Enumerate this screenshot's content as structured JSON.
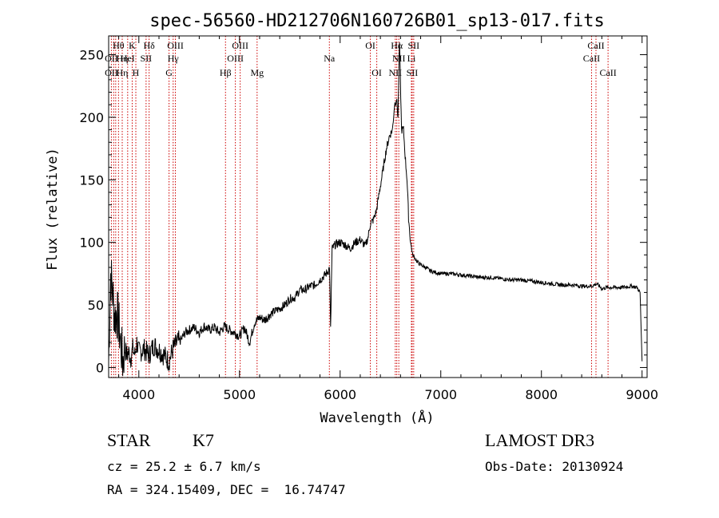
{
  "chart_data": {
    "type": "line",
    "title": "spec-56560-HD212706N160726B01_sp13-017.fits",
    "xlabel": "Wavelength (Å)",
    "ylabel": "Flux (relative)",
    "xlim": [
      3700,
      9050
    ],
    "ylim": [
      -8,
      265
    ],
    "xticks": [
      4000,
      5000,
      6000,
      7000,
      8000,
      9000
    ],
    "yticks": [
      0,
      50,
      100,
      150,
      200,
      250
    ],
    "grid": false,
    "line_color": "#000000",
    "marker_color": "#cc0000",
    "series": [
      {
        "x": [
          3700,
          3720,
          3740,
          3760,
          3780,
          3800,
          3820,
          3840,
          3860,
          3880,
          3900,
          3920,
          3940,
          3960,
          3980,
          4000,
          4050,
          4100,
          4150,
          4200,
          4250,
          4300,
          4340,
          4380,
          4420,
          4460,
          4500,
          4550,
          4600,
          4650,
          4700,
          4750,
          4800,
          4850,
          4900,
          4950,
          5000,
          5050,
          5100,
          5150,
          5200,
          5250,
          5300,
          5350,
          5400,
          5450,
          5500,
          5550,
          5600,
          5650,
          5700,
          5750,
          5800,
          5850,
          5880,
          5895,
          5905,
          5920,
          5950,
          6000,
          6050,
          6100,
          6150,
          6200,
          6250,
          6280,
          6300,
          6330,
          6360,
          6400,
          6430,
          6460,
          6490,
          6520,
          6540,
          6560,
          6575,
          6590,
          6610,
          6630,
          6650,
          6665,
          6680,
          6700,
          6720,
          6740,
          6760,
          6800,
          6850,
          6900,
          7000,
          7100,
          7200,
          7300,
          7400,
          7500,
          7600,
          7700,
          7800,
          7900,
          8000,
          8100,
          8200,
          8300,
          8400,
          8500,
          8550,
          8600,
          8650,
          8700,
          8800,
          8900,
          8950,
          8980,
          9000
        ],
        "y": [
          5,
          75,
          60,
          40,
          45,
          35,
          20,
          5,
          15,
          10,
          12,
          8,
          15,
          10,
          20,
          12,
          15,
          10,
          18,
          14,
          10,
          5,
          15,
          20,
          22,
          28,
          30,
          32,
          28,
          33,
          30,
          32,
          28,
          33,
          30,
          28,
          25,
          32,
          20,
          36,
          40,
          38,
          42,
          45,
          47,
          50,
          55,
          56,
          62,
          62,
          65,
          66,
          70,
          74,
          77,
          80,
          30,
          95,
          98,
          100,
          98,
          95,
          100,
          102,
          97,
          105,
          115,
          118,
          125,
          145,
          160,
          175,
          185,
          190,
          210,
          215,
          200,
          260,
          190,
          190,
          165,
          150,
          120,
          100,
          90,
          88,
          85,
          82,
          80,
          77,
          75,
          75,
          74,
          73,
          72,
          72,
          71,
          70,
          70,
          69,
          68,
          67,
          66,
          66,
          65,
          65,
          67,
          63,
          64,
          64,
          64,
          65,
          64,
          60,
          5
        ]
      }
    ],
    "lines": [
      {
        "wl": 3727,
        "label": "OII"
      },
      {
        "wl": 3750,
        "label": "Hθ"
      },
      {
        "wl": 3770,
        "label": "Hη"
      },
      {
        "wl": 3798,
        "label": "Hθ"
      },
      {
        "wl": 3835,
        "label": "Hη"
      },
      {
        "wl": 3889,
        "label": "HeI"
      },
      {
        "wl": 3934,
        "label": "K"
      },
      {
        "wl": 3970,
        "label": "H"
      },
      {
        "wl": 4072,
        "label": "SII"
      },
      {
        "wl": 4102,
        "label": "Hδ"
      },
      {
        "wl": 4300,
        "label": "G"
      },
      {
        "wl": 4341,
        "label": "Hγ"
      },
      {
        "wl": 4363,
        "label": "OIII"
      },
      {
        "wl": 4861,
        "label": "Hβ"
      },
      {
        "wl": 4959,
        "label": "OIII"
      },
      {
        "wl": 5007,
        "label": "OIII"
      },
      {
        "wl": 5175,
        "label": "Mg"
      },
      {
        "wl": 5893,
        "label": "Na"
      },
      {
        "wl": 6300,
        "label": "OI"
      },
      {
        "wl": 6364,
        "label": "OI"
      },
      {
        "wl": 6548,
        "label": "NII"
      },
      {
        "wl": 6563,
        "label": "Hα"
      },
      {
        "wl": 6583,
        "label": "NII"
      },
      {
        "wl": 6708,
        "label": "Li"
      },
      {
        "wl": 6716,
        "label": "SII"
      },
      {
        "wl": 6731,
        "label": "SII"
      },
      {
        "wl": 8498,
        "label": "CaII"
      },
      {
        "wl": 8542,
        "label": "CaII"
      },
      {
        "wl": 8662,
        "label": "CaII"
      }
    ],
    "line_labels": [
      {
        "text": "Hθ",
        "wl": 3798,
        "row": 0
      },
      {
        "text": "OII",
        "wl": 3727,
        "row": 1
      },
      {
        "text": "Hη",
        "wl": 3835,
        "row": 1
      },
      {
        "text": "OII",
        "wl": 3727,
        "row": 2
      },
      {
        "text": "Hη",
        "wl": 3835,
        "row": 2
      },
      {
        "text": "K",
        "wl": 3934,
        "row": 0
      },
      {
        "text": "HeI",
        "wl": 3889,
        "row": 1
      },
      {
        "text": "H",
        "wl": 3970,
        "row": 2
      },
      {
        "text": "Hδ",
        "wl": 4102,
        "row": 0
      },
      {
        "text": "SII",
        "wl": 4072,
        "row": 1
      },
      {
        "text": "OIII",
        "wl": 4363,
        "row": 0
      },
      {
        "text": "Hγ",
        "wl": 4341,
        "row": 1
      },
      {
        "text": "G",
        "wl": 4300,
        "row": 2
      },
      {
        "text": "OIII",
        "wl": 5007,
        "row": 0
      },
      {
        "text": "OIII",
        "wl": 4959,
        "row": 1
      },
      {
        "text": "Hβ",
        "wl": 4861,
        "row": 2
      },
      {
        "text": "Mg",
        "wl": 5175,
        "row": 2
      },
      {
        "text": "Na",
        "wl": 5893,
        "row": 1
      },
      {
        "text": "OI",
        "wl": 6300,
        "row": 0
      },
      {
        "text": "OI",
        "wl": 6364,
        "row": 2
      },
      {
        "text": "Hα",
        "wl": 6563,
        "row": 0
      },
      {
        "text": "SII",
        "wl": 6731,
        "row": 0
      },
      {
        "text": "NII",
        "wl": 6583,
        "row": 1
      },
      {
        "text": "Li",
        "wl": 6708,
        "row": 1
      },
      {
        "text": "NII",
        "wl": 6548,
        "row": 2
      },
      {
        "text": "SII",
        "wl": 6716,
        "row": 2
      },
      {
        "text": "CaII",
        "wl": 8542,
        "row": 0
      },
      {
        "text": "CaII",
        "wl": 8498,
        "row": 1
      },
      {
        "text": "CaII",
        "wl": 8662,
        "row": 2
      }
    ]
  },
  "info": {
    "class": "STAR",
    "subclass": "K7",
    "cz": "cz = 25.2 ± 6.7 km/s",
    "coords": "RA = 324.15409, DEC =  16.74747",
    "survey": "LAMOST DR3",
    "obs_date": "Obs-Date: 20130924"
  }
}
